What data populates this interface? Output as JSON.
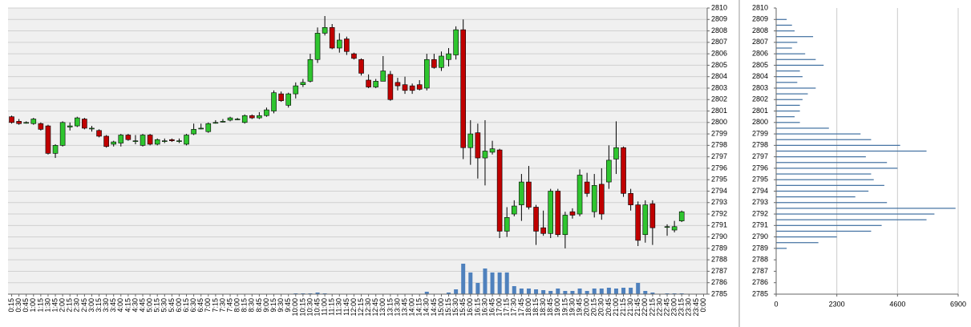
{
  "chart_data": [
    {
      "type": "candlestick",
      "categories": [
        "0:15",
        "0:30",
        "0:45",
        "1:00",
        "1:15",
        "1:30",
        "1:45",
        "2:00",
        "2:15",
        "2:30",
        "2:45",
        "3:00",
        "3:15",
        "3:30",
        "3:45",
        "4:00",
        "4:15",
        "4:30",
        "4:45",
        "5:00",
        "5:15",
        "5:30",
        "5:45",
        "6:00",
        "6:15",
        "6:30",
        "6:45",
        "7:00",
        "7:15",
        "7:30",
        "7:45",
        "8:00",
        "8:15",
        "8:30",
        "8:45",
        "9:00",
        "9:15",
        "9:30",
        "9:45",
        "10:00",
        "10:15",
        "10:30",
        "10:45",
        "11:00",
        "11:15",
        "11:30",
        "11:45",
        "12:00",
        "12:15",
        "12:30",
        "12:45",
        "13:00",
        "13:15",
        "13:30",
        "13:45",
        "14:00",
        "14:15",
        "14:30",
        "14:45",
        "15:00",
        "15:15",
        "15:30",
        "15:45",
        "16:00",
        "16:15",
        "16:30",
        "16:45",
        "17:00",
        "17:15",
        "17:30",
        "17:45",
        "18:00",
        "18:15",
        "18:30",
        "18:45",
        "19:00",
        "19:15",
        "19:30",
        "19:45",
        "20:00",
        "20:15",
        "20:30",
        "20:45",
        "21:00",
        "21:15",
        "21:30",
        "21:45",
        "22:00",
        "22:15",
        "22:30",
        "22:45",
        "23:00",
        "23:15",
        "23:30",
        "23:45",
        "0:00"
      ],
      "open": [
        2800.5,
        2800.1,
        2800.0,
        2799.9,
        2799.9,
        2799.7,
        2797.3,
        2798.0,
        2799.6,
        2799.7,
        2800.3,
        2799.5,
        2799.3,
        2798.8,
        2798.1,
        2798.2,
        2798.9,
        2798.4,
        2798.0,
        2798.9,
        2798.1,
        2798.4,
        2798.5,
        2798.4,
        2798.1,
        2799.0,
        2799.5,
        2799.2,
        2800.0,
        2800.1,
        2800.2,
        2800.3,
        2800.0,
        2800.6,
        2800.4,
        2800.6,
        2801.0,
        2802.5,
        2801.5,
        2802.5,
        2803.3,
        2803.6,
        2805.5,
        2807.8,
        2808.3,
        2806.5,
        2807.3,
        2806.0,
        2805.5,
        2803.7,
        2803.1,
        2803.6,
        2804.2,
        2803.5,
        2803.3,
        2803.2,
        2803.3,
        2803.0,
        2805.5,
        2804.8,
        2805.5,
        2805.9,
        2808.1,
        2797.8,
        2799.1,
        2796.9,
        2797.4,
        2797.6,
        2790.5,
        2792.0,
        2792.8,
        2794.8,
        2792.6,
        2790.8,
        2790.3,
        2794.0,
        2790.2,
        2792.2,
        2792.0,
        2794.8,
        2792.2,
        2794.6,
        2794.8,
        2796.8,
        2797.8,
        2793.8,
        2792.8,
        2790.2,
        2792.9,
        null,
        2790.9,
        2790.6,
        2791.4,
        null,
        null,
        null
      ],
      "high": [
        2800.6,
        2800.3,
        2800.1,
        2800.4,
        2800.0,
        2799.8,
        2798.1,
        2800.1,
        2800.0,
        2800.5,
        2800.4,
        2799.7,
        2799.4,
        2798.9,
        2798.4,
        2799.0,
        2799.0,
        2798.9,
        2799.0,
        2799.0,
        2798.6,
        2798.6,
        2798.6,
        2798.6,
        2799.0,
        2799.9,
        2799.9,
        2800.0,
        2800.2,
        2800.3,
        2800.5,
        2800.4,
        2800.7,
        2800.7,
        2800.9,
        2801.3,
        2802.8,
        2802.7,
        2802.6,
        2803.5,
        2803.8,
        2806.0,
        2808.3,
        2809.3,
        2808.6,
        2807.8,
        2807.5,
        2806.1,
        2805.6,
        2804.2,
        2803.8,
        2805.8,
        2804.5,
        2803.9,
        2804.0,
        2803.4,
        2803.7,
        2806.0,
        2806.0,
        2806.2,
        2806.5,
        2808.4,
        2809.0,
        2800.2,
        2799.9,
        2800.2,
        2798.4,
        2797.7,
        2792.6,
        2793.2,
        2795.5,
        2796.2,
        2792.8,
        2792.3,
        2794.2,
        2794.2,
        2792.2,
        2792.5,
        2795.9,
        2795.6,
        2795.5,
        2796.0,
        2798.0,
        2800.1,
        2797.9,
        2794.2,
        2793.1,
        2793.2,
        2793.2,
        null,
        2791.1,
        2791.4,
        2792.3,
        null,
        null,
        null
      ],
      "low": [
        2799.9,
        2799.8,
        2799.9,
        2799.8,
        2799.3,
        2797.2,
        2796.9,
        2797.9,
        2799.3,
        2799.6,
        2799.4,
        2799.2,
        2798.7,
        2797.8,
        2797.9,
        2797.9,
        2798.4,
        2798.1,
        2797.9,
        2798.0,
        2798.0,
        2798.2,
        2798.3,
        2798.2,
        2798.0,
        2798.9,
        2799.4,
        2799.1,
        2799.9,
        2800.0,
        2800.1,
        2800.2,
        2799.9,
        2800.3,
        2800.3,
        2800.5,
        2800.8,
        2801.8,
        2801.3,
        2802.1,
        2803.1,
        2803.5,
        2805.2,
        2807.6,
        2806.4,
        2806.1,
        2805.9,
        2805.5,
        2804.1,
        2803.0,
        2803.0,
        2803.6,
        2801.9,
        2802.8,
        2802.5,
        2802.5,
        2802.8,
        2802.8,
        2804.7,
        2804.5,
        2804.9,
        2805.5,
        2796.8,
        2796.3,
        2795.1,
        2794.5,
        2797.2,
        2789.9,
        2790.0,
        2791.8,
        2791.4,
        2792.4,
        2789.3,
        2790.1,
        2789.9,
        2790.0,
        2789.0,
        2791.6,
        2791.8,
        2793.5,
        2791.7,
        2791.5,
        2794.2,
        2795.5,
        2793.5,
        2792.3,
        2789.2,
        2789.5,
        2789.3,
        null,
        2790.1,
        2790.4,
        2791.3,
        null,
        null,
        null
      ],
      "close": [
        2800.0,
        2799.9,
        2800.0,
        2800.3,
        2799.4,
        2797.3,
        2798.0,
        2800.0,
        2799.7,
        2800.4,
        2799.5,
        2799.5,
        2798.8,
        2797.9,
        2798.3,
        2798.9,
        2798.5,
        2798.4,
        2798.9,
        2798.1,
        2798.5,
        2798.4,
        2798.4,
        2798.4,
        2798.9,
        2799.4,
        2799.5,
        2799.9,
        2800.0,
        2800.1,
        2800.4,
        2800.3,
        2800.6,
        2800.4,
        2800.6,
        2801.1,
        2802.6,
        2801.9,
        2802.5,
        2803.2,
        2803.5,
        2805.5,
        2807.8,
        2808.3,
        2806.5,
        2807.2,
        2806.2,
        2805.6,
        2804.3,
        2803.1,
        2803.6,
        2804.5,
        2802.0,
        2803.2,
        2802.8,
        2802.8,
        2802.9,
        2805.5,
        2804.8,
        2805.8,
        2806.0,
        2808.1,
        2797.8,
        2799.0,
        2796.9,
        2797.5,
        2797.7,
        2790.5,
        2791.7,
        2792.7,
        2794.8,
        2792.6,
        2790.5,
        2790.3,
        2794.0,
        2790.2,
        2791.9,
        2791.9,
        2795.4,
        2793.8,
        2794.5,
        2792.0,
        2796.7,
        2797.8,
        2793.8,
        2792.8,
        2789.7,
        2792.8,
        2790.8,
        null,
        2790.9,
        2790.9,
        2792.2,
        null,
        null,
        null
      ],
      "volume": [
        0,
        0,
        0,
        0,
        0,
        0,
        0,
        0,
        0,
        0,
        0,
        0,
        0,
        0,
        0,
        0,
        0,
        0,
        0,
        0,
        0,
        0,
        0,
        0,
        0,
        0,
        0,
        0,
        0,
        0,
        0,
        0,
        0,
        0,
        0,
        0,
        0,
        0,
        0,
        1,
        1,
        1,
        2,
        1,
        0,
        0,
        0,
        0,
        0,
        0,
        0,
        0,
        0,
        0,
        0,
        0,
        0,
        3,
        0,
        0,
        2,
        6,
        38,
        27,
        14,
        32,
        27,
        27,
        27,
        10,
        7,
        7,
        6,
        5,
        4,
        7,
        4,
        4,
        7,
        4,
        7,
        7,
        8,
        7,
        8,
        8,
        14,
        4,
        2,
        null,
        1,
        1,
        1,
        null,
        null,
        null
      ],
      "up_color": "#2fc52f",
      "down_color": "#c00000",
      "volume_color": "#4f81bd",
      "ylim": [
        2785,
        2810
      ],
      "yticks": [
        2785,
        2786,
        2787,
        2788,
        2789,
        2790,
        2791,
        2792,
        2793,
        2794,
        2795,
        2796,
        2797,
        2798,
        2799,
        2800,
        2801,
        2802,
        2803,
        2804,
        2805,
        2806,
        2807,
        2808,
        2809,
        2810
      ],
      "grid": true
    },
    {
      "type": "bar",
      "orientation": "horizontal",
      "y": [
        2809,
        2808.5,
        2808,
        2807.5,
        2807,
        2806.5,
        2806,
        2805.5,
        2805,
        2804.5,
        2804,
        2803.5,
        2803,
        2802.5,
        2802,
        2801.5,
        2801,
        2800.5,
        2800,
        2799.5,
        2799,
        2798.5,
        2798,
        2797.5,
        2797,
        2796.5,
        2796,
        2795.5,
        2795,
        2794.5,
        2794,
        2793.5,
        2793,
        2792.5,
        2792,
        2791.5,
        2791,
        2790.5,
        2790,
        2789.5,
        2789
      ],
      "values": [
        400,
        600,
        700,
        1400,
        800,
        600,
        1100,
        1500,
        1800,
        900,
        1000,
        800,
        1500,
        1200,
        1000,
        900,
        900,
        700,
        900,
        2000,
        3200,
        3600,
        4700,
        5700,
        3400,
        4200,
        4600,
        3600,
        3700,
        4100,
        3500,
        3000,
        4200,
        6800,
        6000,
        5700,
        4000,
        3600,
        2300,
        1600,
        400
      ],
      "color": "#3f6fa0",
      "xlim": [
        0,
        6900
      ],
      "xticks": [
        0,
        2300,
        4600,
        6900
      ],
      "ylim": [
        2785,
        2810
      ],
      "yticks": [
        2785,
        2786,
        2787,
        2788,
        2789,
        2790,
        2791,
        2792,
        2793,
        2794,
        2795,
        2796,
        2797,
        2798,
        2799,
        2800,
        2801,
        2802,
        2803,
        2804,
        2805,
        2806,
        2807,
        2808,
        2809,
        2810
      ],
      "grid": true
    }
  ]
}
